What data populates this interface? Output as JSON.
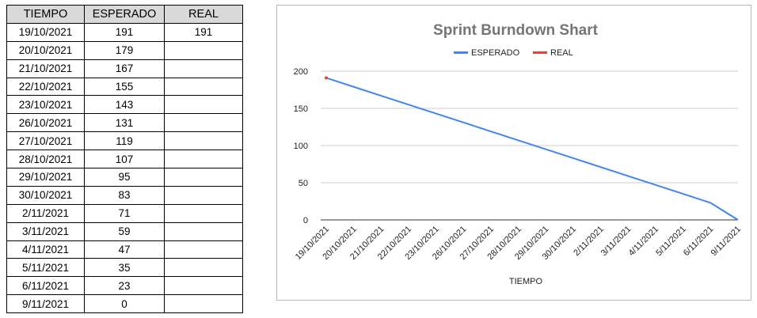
{
  "table": {
    "headers": [
      "TIEMPO",
      "ESPERADO",
      "REAL"
    ],
    "rows": [
      [
        "19/10/2021",
        "191",
        "191"
      ],
      [
        "20/10/2021",
        "179",
        ""
      ],
      [
        "21/10/2021",
        "167",
        ""
      ],
      [
        "22/10/2021",
        "155",
        ""
      ],
      [
        "23/10/2021",
        "143",
        ""
      ],
      [
        "26/10/2021",
        "131",
        ""
      ],
      [
        "27/10/2021",
        "119",
        ""
      ],
      [
        "28/10/2021",
        "107",
        ""
      ],
      [
        "29/10/2021",
        "95",
        ""
      ],
      [
        "30/10/2021",
        "83",
        ""
      ],
      [
        "2/11/2021",
        "71",
        ""
      ],
      [
        "3/11/2021",
        "59",
        ""
      ],
      [
        "4/11/2021",
        "47",
        ""
      ],
      [
        "5/11/2021",
        "35",
        ""
      ],
      [
        "6/11/2021",
        "23",
        ""
      ],
      [
        "9/11/2021",
        "0",
        ""
      ]
    ]
  },
  "chart_data": {
    "type": "line",
    "title": "Sprint Burndown Shart",
    "xlabel": "TIEMPO",
    "ylabel": "",
    "ylim": [
      0,
      200
    ],
    "yticks": [
      0,
      50,
      100,
      150,
      200
    ],
    "grid": true,
    "legend_position": "top",
    "categories": [
      "19/10/2021",
      "20/10/2021",
      "21/10/2021",
      "22/10/2021",
      "23/10/2021",
      "26/10/2021",
      "27/10/2021",
      "28/10/2021",
      "29/10/2021",
      "30/10/2021",
      "2/11/2021",
      "3/11/2021",
      "4/11/2021",
      "5/11/2021",
      "6/11/2021",
      "9/11/2021"
    ],
    "series": [
      {
        "name": "ESPERADO",
        "color": "#4285f4",
        "values": [
          191,
          179,
          167,
          155,
          143,
          131,
          119,
          107,
          95,
          83,
          71,
          59,
          47,
          35,
          23,
          0
        ]
      },
      {
        "name": "REAL",
        "color": "#ea4335",
        "values": [
          191,
          null,
          null,
          null,
          null,
          null,
          null,
          null,
          null,
          null,
          null,
          null,
          null,
          null,
          null,
          null
        ]
      }
    ]
  }
}
